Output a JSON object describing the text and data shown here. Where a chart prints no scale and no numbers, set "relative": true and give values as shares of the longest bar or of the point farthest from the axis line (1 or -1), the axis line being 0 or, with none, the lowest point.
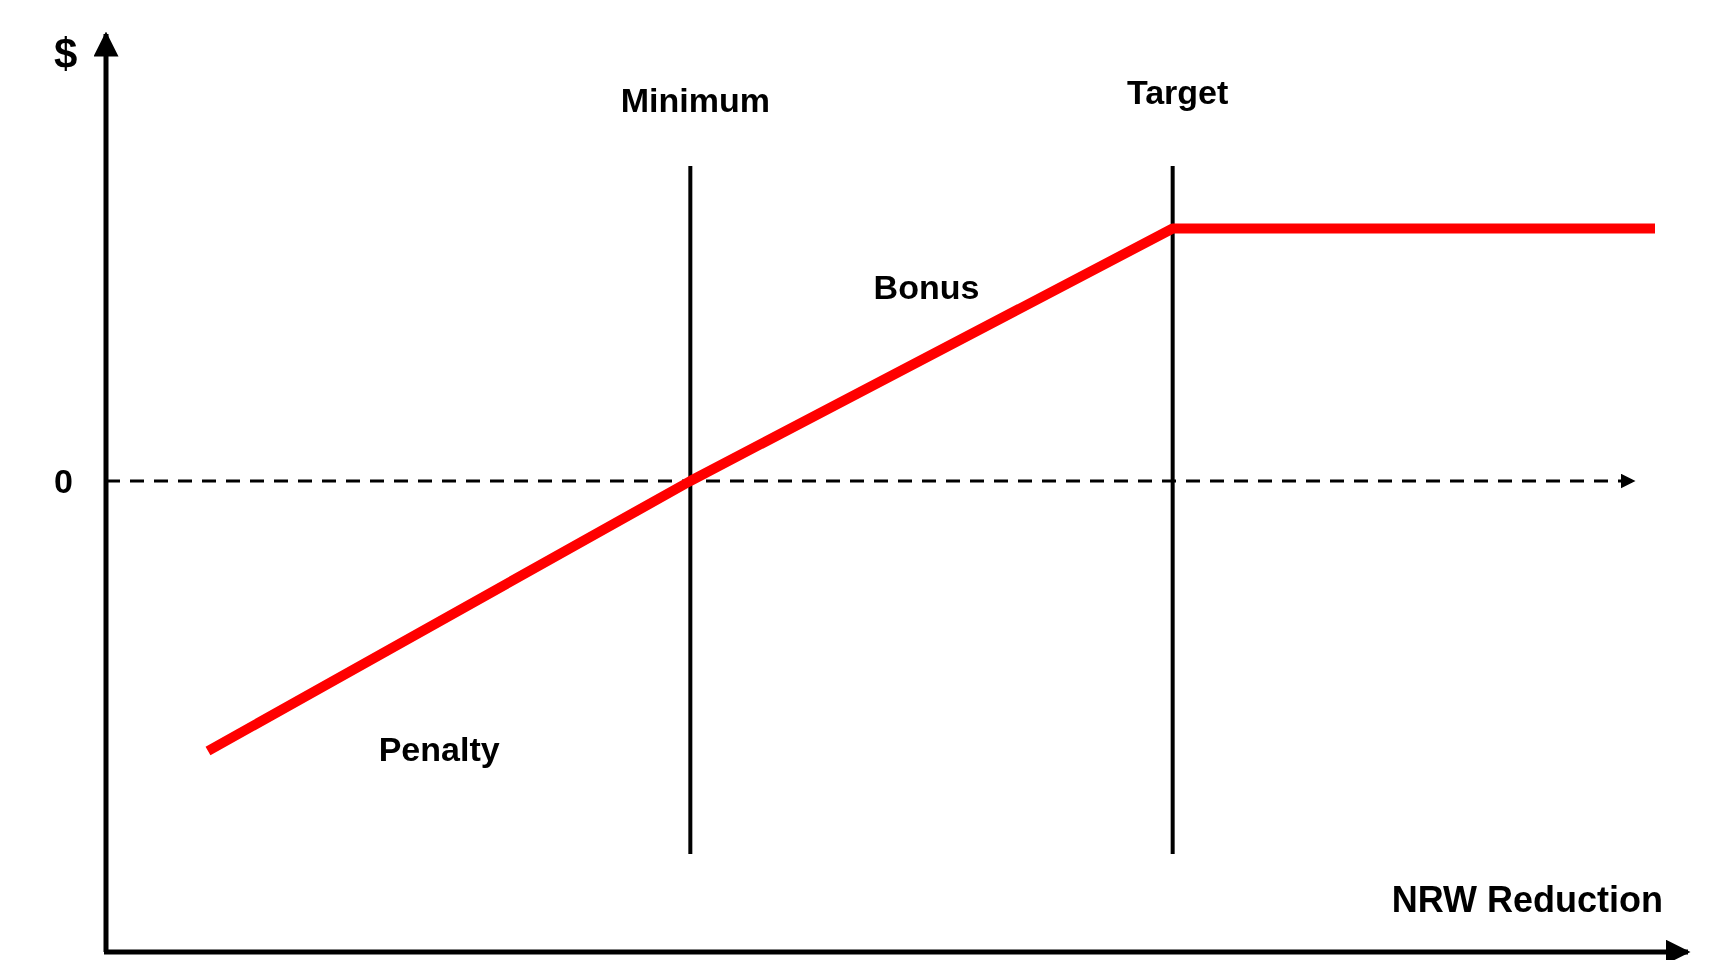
{
  "chart_data": {
    "type": "line",
    "relative": true,
    "categories": [
      null,
      null,
      null,
      null
    ],
    "series": [
      {
        "color": "#ff0000",
        "values": [
          -1,
          0,
          0.935,
          0.935
        ]
      }
    ],
    "ylabel": "$",
    "xlabel": "NRW Reduction",
    "ref_lines": [
      {
        "axis": "y",
        "value": 0,
        "label": "0",
        "line_style": "dashed",
        "color": "#000000"
      }
    ],
    "annotations": [
      "Minimum",
      "Target",
      "Bonus",
      "Penalty"
    ],
    "marker": "none",
    "line_style": "solid"
  }
}
